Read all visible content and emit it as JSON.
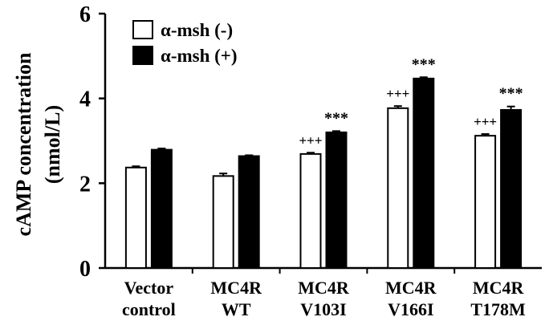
{
  "chart_data": {
    "type": "bar",
    "title": "",
    "xlabel": "",
    "ylabel": [
      "cAMP concentration",
      "(nmol/L)"
    ],
    "ylim": [
      0,
      6
    ],
    "yticks": [
      0,
      2,
      4,
      6
    ],
    "categories": [
      [
        "Vector",
        "control"
      ],
      [
        "MC4R",
        "WT"
      ],
      [
        "MC4R",
        "V103I"
      ],
      [
        "MC4R",
        "V166I"
      ],
      [
        "MC4R",
        "T178M"
      ]
    ],
    "series": [
      {
        "name": "α-msh (-)",
        "fill": "#ffffff",
        "values": [
          2.37,
          2.17,
          2.69,
          3.77,
          3.12
        ],
        "errors": [
          0.03,
          0.06,
          0.03,
          0.05,
          0.04
        ],
        "annotations": [
          "",
          "",
          "+++",
          "+++",
          "+++"
        ]
      },
      {
        "name": "α-msh (+)",
        "fill": "#000000",
        "values": [
          2.79,
          2.64,
          3.2,
          4.47,
          3.73
        ],
        "errors": [
          0.03,
          0.02,
          0.03,
          0.03,
          0.08
        ],
        "annotations": [
          "",
          "",
          "***",
          "***",
          "***"
        ]
      }
    ],
    "legend_position": "top-left",
    "grid": false
  }
}
